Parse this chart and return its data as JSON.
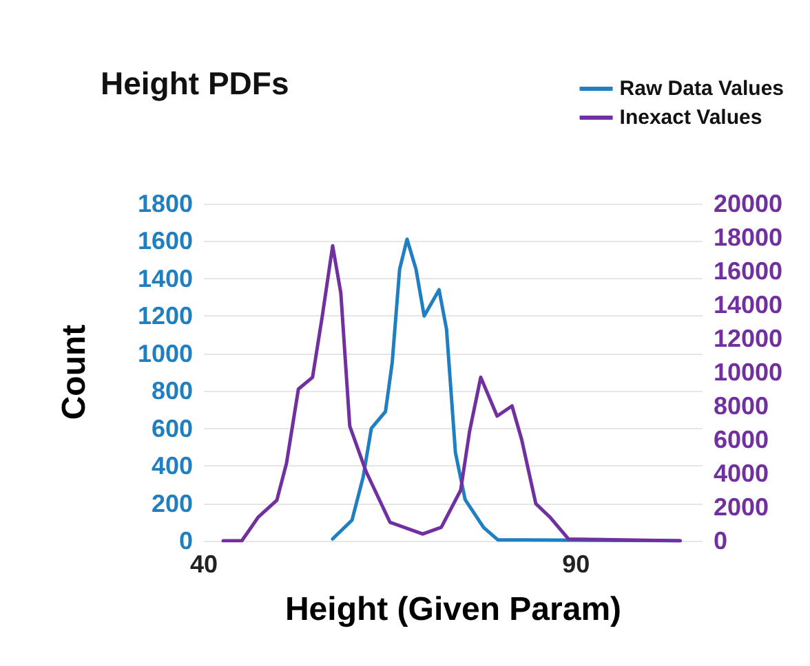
{
  "chart_data": {
    "type": "line",
    "title": "Height PDFs",
    "xlabel": "Height (Given Param)",
    "ylabel": "Count",
    "xlim": [
      40,
      107
    ],
    "xticks": [
      40,
      90
    ],
    "ylim": [
      0,
      1800
    ],
    "yticks": [
      0,
      200,
      400,
      600,
      800,
      1000,
      1200,
      1400,
      1600,
      1800
    ],
    "y2lim": [
      0,
      20000
    ],
    "y2ticks": [
      0,
      2000,
      4000,
      6000,
      8000,
      10000,
      12000,
      14000,
      16000,
      18000,
      20000
    ],
    "grid": "y",
    "legend": "top right",
    "marker": "none",
    "line_style": "solid",
    "series": [
      {
        "name": "Raw Data Values",
        "color": "#1f7fc0",
        "x": [
          57.3,
          59.9,
          61.4,
          62.5,
          64.4,
          65.3,
          66.3,
          67.3,
          68.5,
          69.6,
          71.6,
          72.6,
          73.8,
          75.1,
          77.6,
          79.5,
          104
        ],
        "values": [
          10,
          110,
          340,
          600,
          690,
          950,
          1450,
          1610,
          1450,
          1200,
          1340,
          1130,
          470,
          220,
          70,
          5,
          0
        ]
      },
      {
        "name": "Inexact Values",
        "color": "#7030a0",
        "axis": "y2",
        "x": [
          42.6,
          45.1,
          47.3,
          49.8,
          51.1,
          52.7,
          54.6,
          55.9,
          57.3,
          58.4,
          59.6,
          61.8,
          65.0,
          69.4,
          71.9,
          74.5,
          75.7,
          77.2,
          79.4,
          81.4,
          82.7,
          84.6,
          86.5,
          89.0,
          104
        ],
        "values": [
          0,
          0,
          1400,
          2400,
          4600,
          9000,
          9700,
          13300,
          17500,
          14700,
          6800,
          4100,
          1100,
          400,
          800,
          3000,
          6500,
          9700,
          7400,
          8000,
          6000,
          2200,
          1400,
          100,
          0
        ]
      }
    ]
  }
}
